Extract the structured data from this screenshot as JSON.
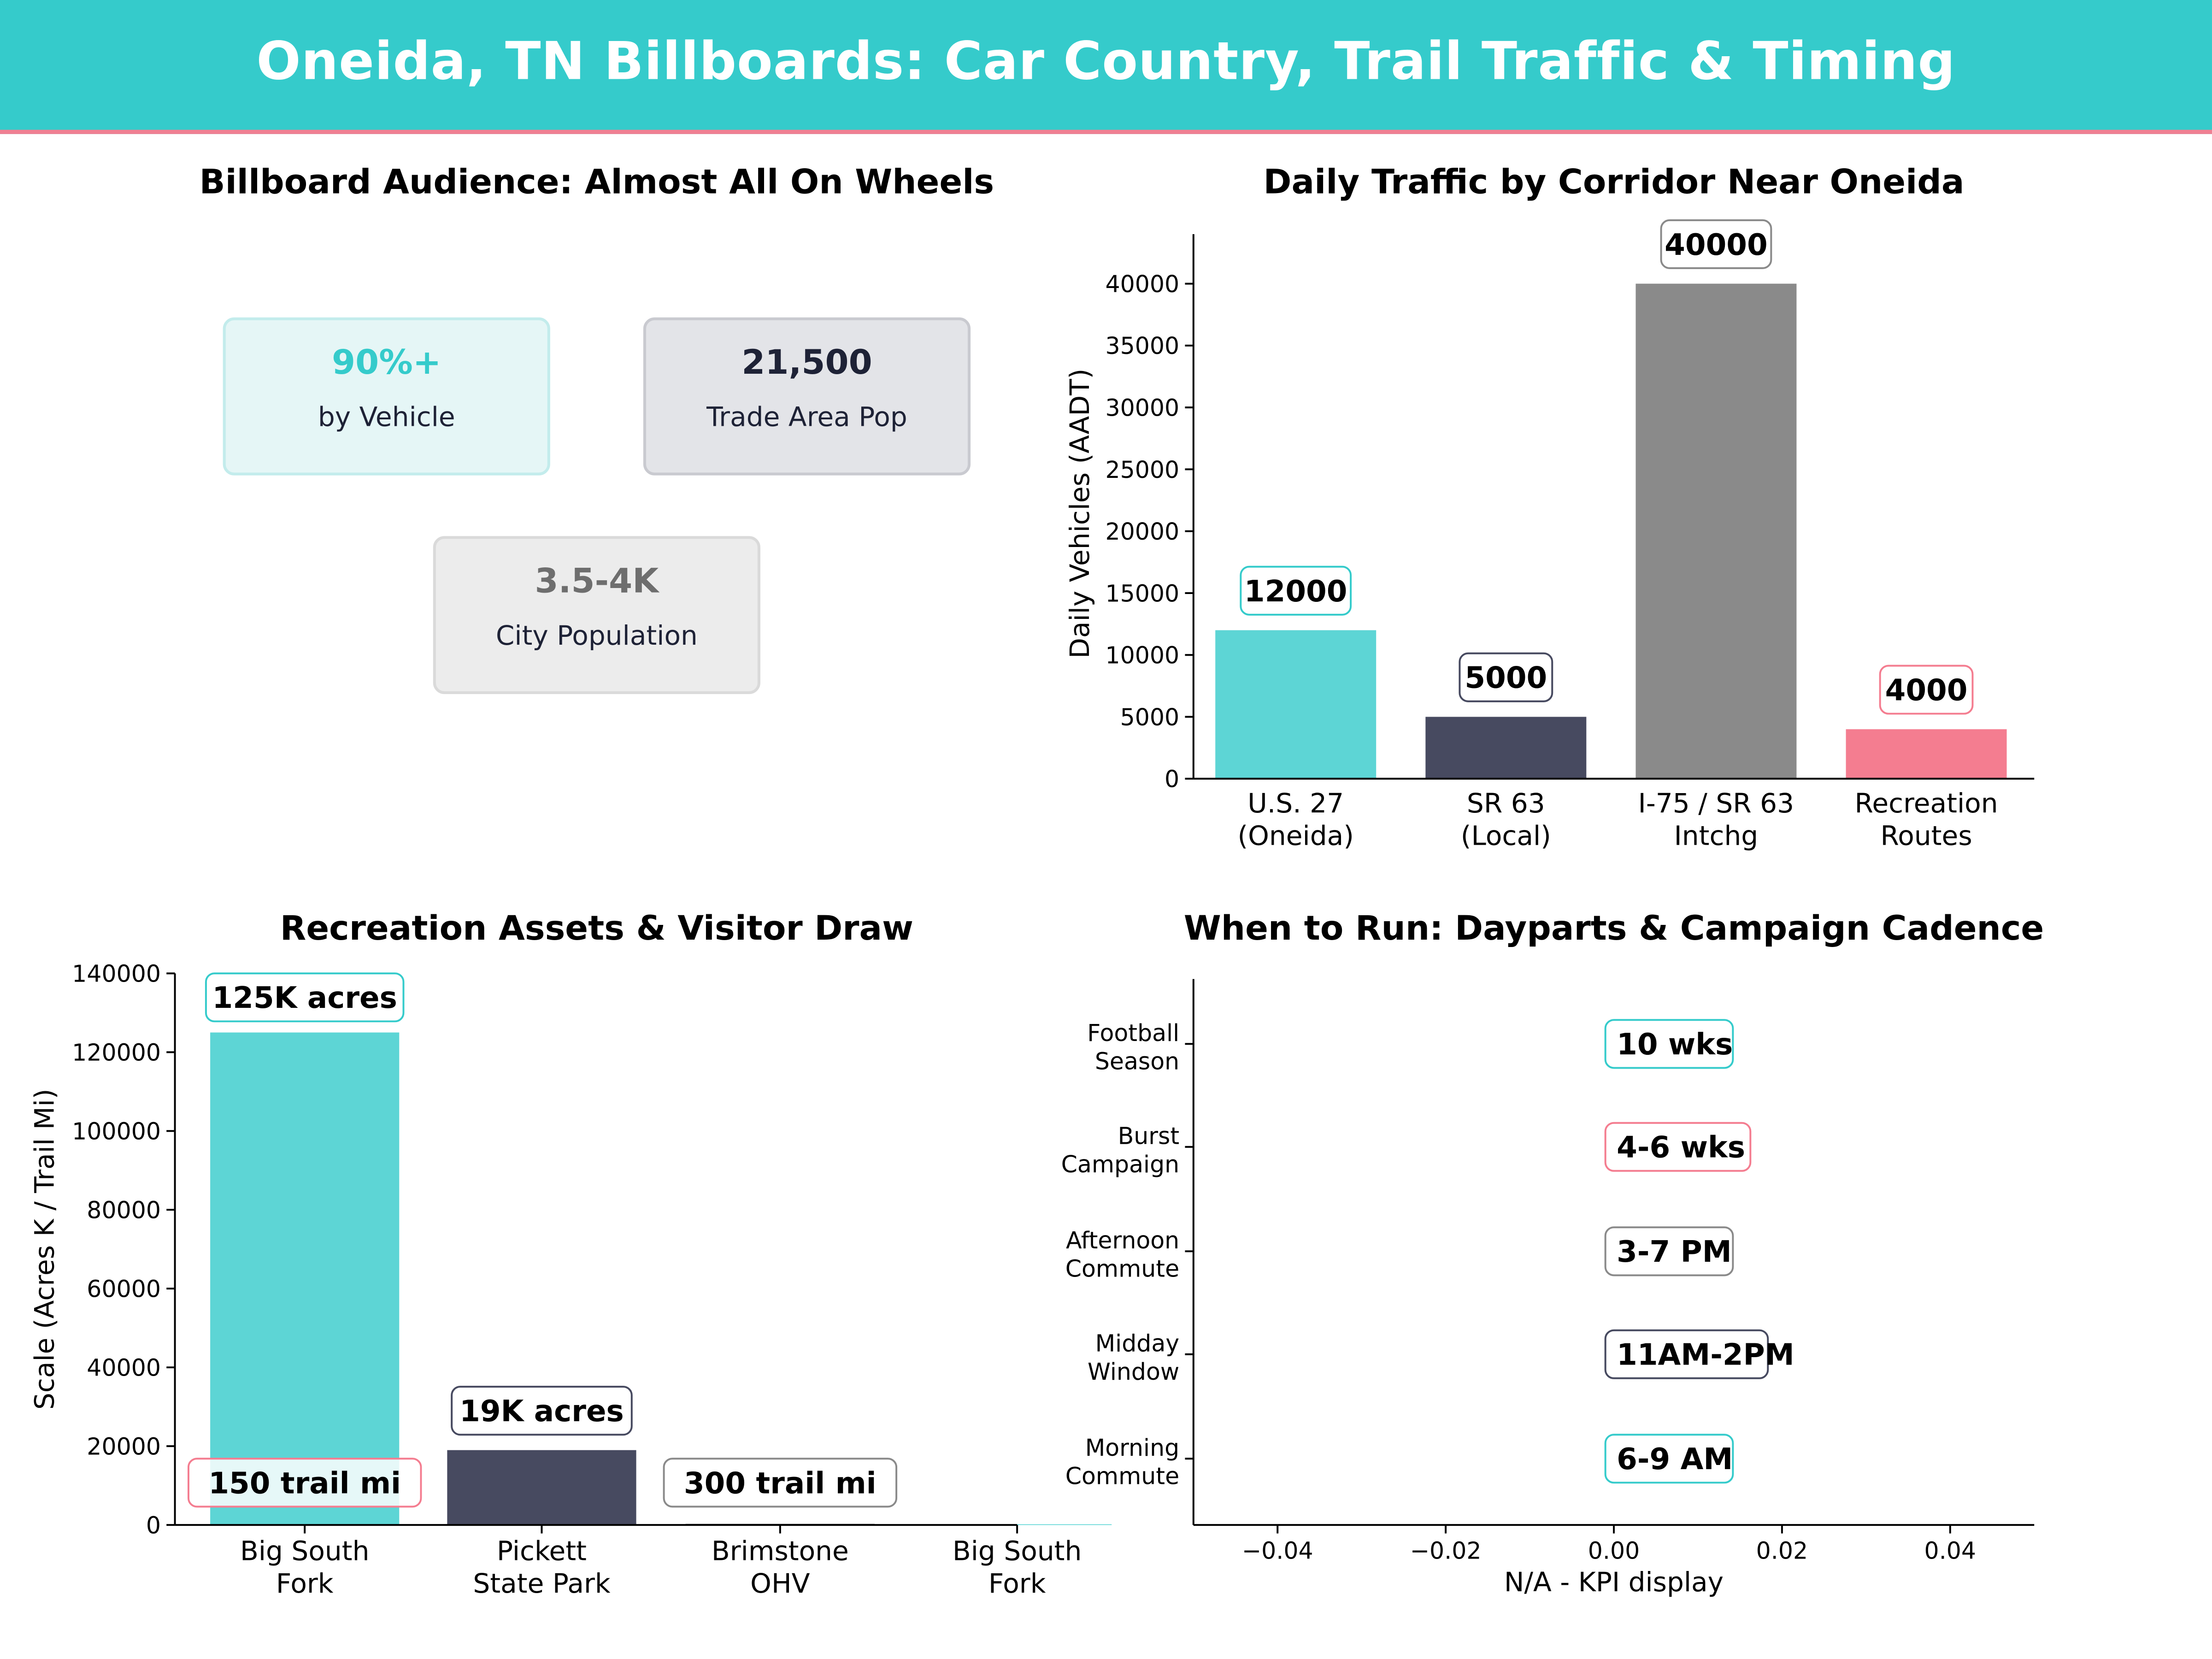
{
  "title": "Oneida, TN Billboards: Car Country, Trail Traffic & Timing",
  "colors": {
    "teal": "#35cbcb",
    "navy": "#474a60",
    "gray": "#8a8a8a",
    "pink": "#f47d90"
  },
  "kpi_panel": {
    "title": "Billboard Audience: Almost All On Wheels",
    "cards": [
      {
        "value": "90%+",
        "label": "by Vehicle"
      },
      {
        "value": "21,500",
        "label": "Trade Area Pop"
      },
      {
        "value": "3.5-4K",
        "label": "City Population"
      }
    ]
  },
  "chart_data": [
    {
      "type": "bar",
      "title": "Daily Traffic by Corridor Near Oneida",
      "categories": [
        "U.S. 27\n(Oneida)",
        "SR 63\n(Local)",
        "I-75 / SR 63\nIntchg",
        "Recreation\nRoutes"
      ],
      "values": [
        12000,
        5000,
        40000,
        4000
      ],
      "data_labels": [
        "12000",
        "5000",
        "40000",
        "4000"
      ],
      "xlabel": "",
      "ylabel": "Daily Vehicles (AADT)",
      "ylim": [
        0,
        44000
      ],
      "yticks": [
        0,
        5000,
        10000,
        15000,
        20000,
        25000,
        30000,
        35000,
        40000
      ],
      "grid": false
    },
    {
      "type": "bar",
      "title": "Recreation Assets & Visitor Draw",
      "categories": [
        "Big South\nFork",
        "Pickett\nState Park",
        "Brimstone\nOHV",
        "Big South\nFork"
      ],
      "values": [
        125000,
        19000,
        300,
        150
      ],
      "data_labels": [
        "125K acres",
        "19K acres",
        "300 trail mi",
        "150 trail mi"
      ],
      "xlabel": "",
      "ylabel": "Scale (Acres K / Trail Mi)",
      "ylim": [
        0,
        140000
      ],
      "yticks": [
        0,
        20000,
        40000,
        60000,
        80000,
        100000,
        120000,
        140000
      ],
      "grid": false
    },
    {
      "type": "table",
      "title": "When to Run: Dayparts & Campaign Cadence",
      "categories": [
        "Football\nSeason",
        "Burst\nCampaign",
        "Afternoon\nCommute",
        "Midday\nWindow",
        "Morning\nCommute"
      ],
      "labels": [
        "10 wks",
        "4-6 wks",
        "3-7 PM",
        "11AM-2PM",
        "6-9 AM"
      ],
      "x": [
        0,
        0,
        0,
        0,
        0
      ],
      "xlabel": "N/A - KPI display",
      "xlim": [
        -0.05,
        0.05
      ],
      "xticks": [
        "−0.04",
        "−0.02",
        "0.00",
        "0.02",
        "0.04"
      ],
      "grid": false
    }
  ]
}
